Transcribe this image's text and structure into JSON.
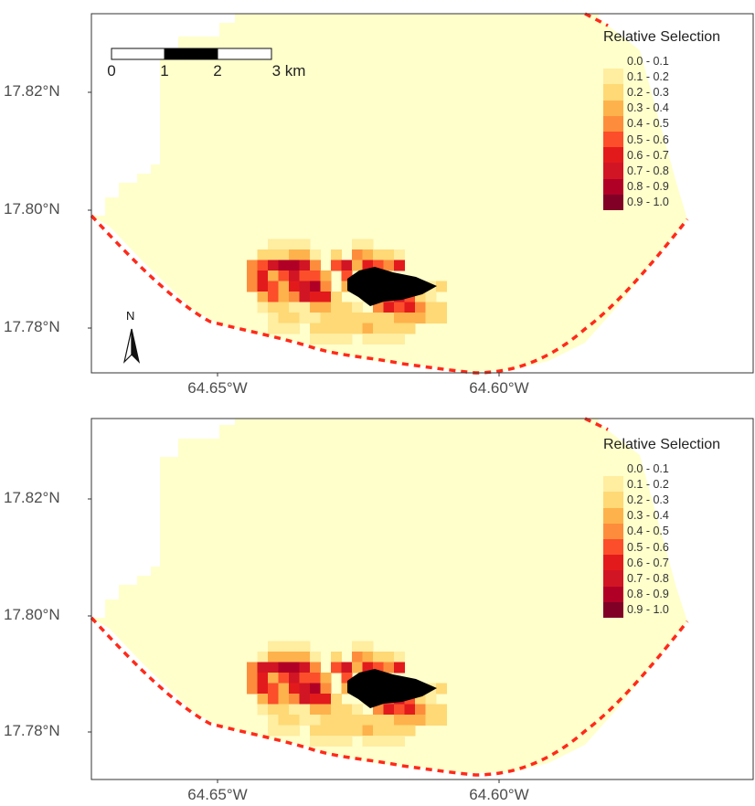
{
  "panels": [
    {
      "id": "top",
      "y_axis_labels": [
        "17.82°N",
        "17.80°N",
        "17.78°N"
      ],
      "x_axis_labels": [
        "64.65°W",
        "64.60°W"
      ],
      "legend": {
        "title": "Relative Selection",
        "items": [
          "0.0 - 0.1",
          "0.1 - 0.2",
          "0.2 - 0.3",
          "0.3 - 0.4",
          "0.4 - 0.5",
          "0.5 - 0.6",
          "0.6 - 0.7",
          "0.7 - 0.8",
          "0.8 - 0.9",
          "0.9 - 1.0"
        ]
      },
      "scale_bar": {
        "labels": [
          "0",
          "1",
          "2",
          "3 km"
        ]
      },
      "north_arrow": {
        "letter": "N"
      }
    },
    {
      "id": "bottom",
      "y_axis_labels": [
        "17.82°N",
        "17.80°N",
        "17.78°N"
      ],
      "x_axis_labels": [
        "64.65°W",
        "64.60°W"
      ],
      "legend": {
        "title": "Relative Selection",
        "items": [
          "0.0 - 0.1",
          "0.1 - 0.2",
          "0.2 - 0.3",
          "0.3 - 0.4",
          "0.4 - 0.5",
          "0.5 - 0.6",
          "0.6 - 0.7",
          "0.7 - 0.8",
          "0.8 - 0.9",
          "0.9 - 1.0"
        ]
      }
    }
  ],
  "colors": {
    "palette": [
      "#ffffcc",
      "#ffeda0",
      "#fed976",
      "#feb24c",
      "#fd8d3c",
      "#fc4e2a",
      "#e31a1c",
      "#d11524",
      "#b10026",
      "#800026"
    ],
    "boundary": "#ff2a1a",
    "island": "#000000",
    "panel_border": "#333333"
  }
}
